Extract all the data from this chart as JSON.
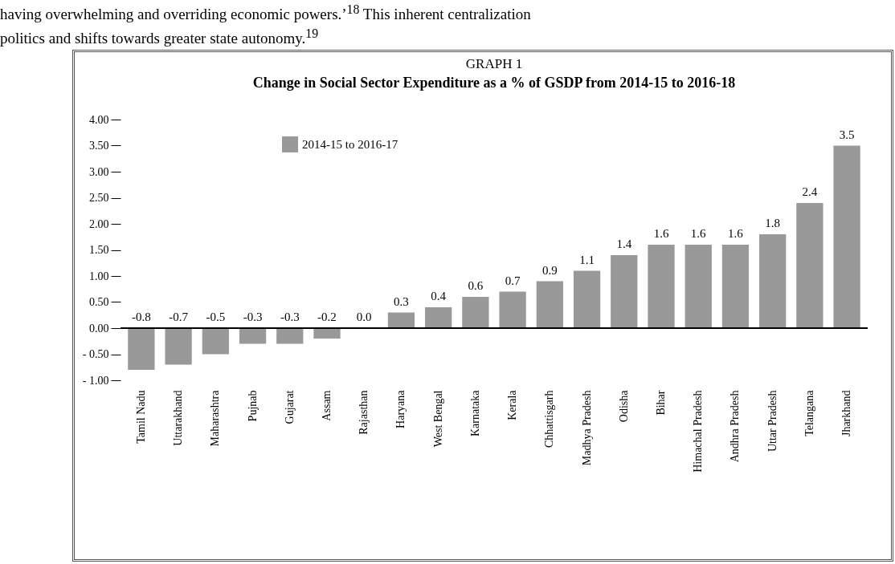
{
  "chart_data": {
    "type": "bar",
    "title": "GRAPH 1",
    "subtitle": "Change in Social Sector Expenditure as a % of GSDP from 2014-15 to 2016-18",
    "annotations": [
      "having overwhelming and overriding economic powers.’$^{18}$ This inherent centralization",
      "politics and shifts towards greater state autonomy.$^{19}$"
    ],
    "categories": [
      "Tamil Nadu",
      "Uttarakhand",
      "Maharashtra",
      "Pujnab",
      "Gujarat",
      "Assam",
      "Rajasthan",
      "Haryana",
      "West Bengal",
      "Karnataka",
      "Kerala",
      "Chhattisgarh",
      "Madhya Pradesh",
      "Odisha",
      "Bihar",
      "Himachal Pradesh",
      "Andhra Pradesh",
      "Uttar Pradesh",
      "Telangana",
      "Jharkhand"
    ],
    "series": [
      {
        "name": "2014-15 to 2016-17",
        "color": "#999999",
        "values": [
          -0.8,
          -0.7,
          -0.5,
          -0.3,
          -0.3,
          -0.2,
          0.0,
          0.3,
          0.4,
          0.6,
          0.7,
          0.9,
          1.1,
          1.4,
          1.6,
          1.6,
          1.6,
          1.8,
          2.4,
          3.5
        ]
      }
    ],
    "ylim": [
      -1,
      4
    ],
    "yticks": [
      {
        "value": 4,
        "label": "4.00"
      },
      {
        "value": 3.5,
        "label": "3.50"
      },
      {
        "value": 3,
        "label": "3.00"
      },
      {
        "value": 2.5,
        "label": "2.50"
      },
      {
        "value": 2,
        "label": "2.00"
      },
      {
        "value": 1.5,
        "label": "1.50"
      },
      {
        "value": 1,
        "label": "1.00"
      },
      {
        "value": 0.5,
        "label": "0.50"
      },
      {
        "value": 0,
        "label": "0.00"
      },
      {
        "value": -0.5,
        "label": "- 0.50"
      },
      {
        "value": -1,
        "label": "- 1.00"
      }
    ],
    "value_labels": [
      "-0.8",
      "-0.7",
      "-0.5",
      "-0.3",
      "-0.3",
      "-0.2",
      "0.0",
      "0.3",
      "0.4",
      "0.6",
      "0.7",
      "0.9",
      "1.1",
      "1.4",
      "1.6",
      "1.6",
      "1.6",
      "1.8",
      "2.4",
      "3.5"
    ],
    "legend": "top left"
  }
}
